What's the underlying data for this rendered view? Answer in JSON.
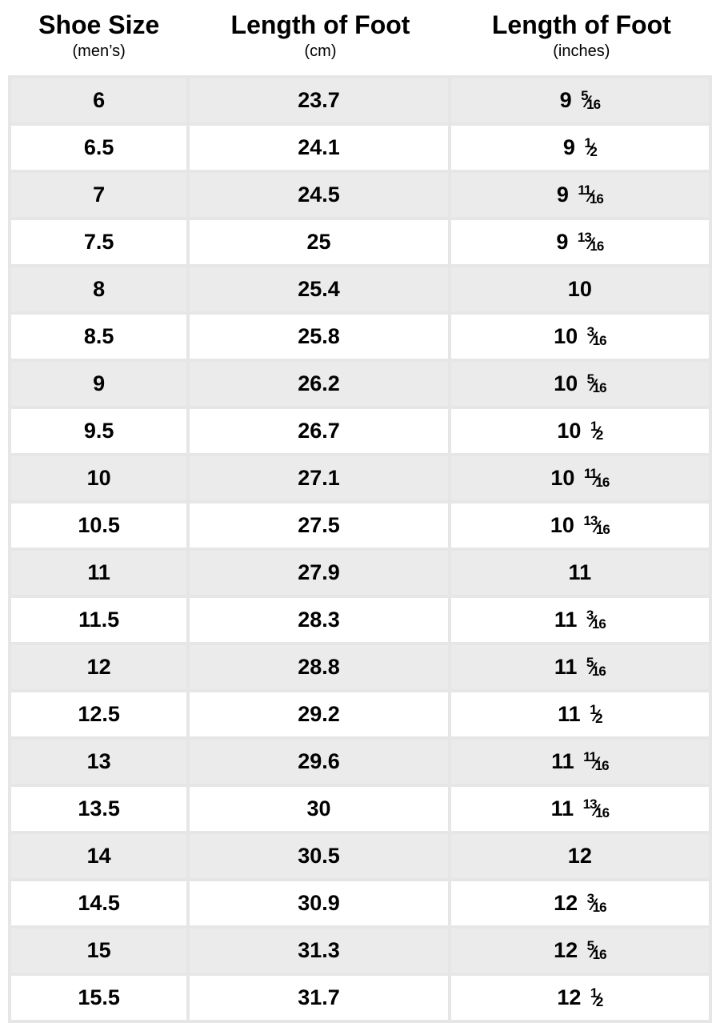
{
  "table": {
    "type": "table",
    "background_color": "#ffffff",
    "row_alt_color": "#ebebeb",
    "border_color": "#e6e6e6",
    "text_color": "#000000",
    "header_main_fontsize": 32,
    "header_sub_fontsize": 20,
    "cell_fontsize": 27,
    "frac_small_fontsize": 17,
    "columns": [
      {
        "main": "Shoe Size",
        "sub": "(men’s)"
      },
      {
        "main": "Length of Foot",
        "sub": "(cm)"
      },
      {
        "main": "Length of Foot",
        "sub": "(inches)"
      }
    ],
    "rows": [
      {
        "size": "6",
        "cm": "23.7",
        "in_whole": "9",
        "in_num": "5",
        "in_den": "16"
      },
      {
        "size": "6.5",
        "cm": "24.1",
        "in_whole": "9",
        "in_num": "1",
        "in_den": "2"
      },
      {
        "size": "7",
        "cm": "24.5",
        "in_whole": "9",
        "in_num": "11",
        "in_den": "16"
      },
      {
        "size": "7.5",
        "cm": "25",
        "in_whole": "9",
        "in_num": "13",
        "in_den": "16"
      },
      {
        "size": "8",
        "cm": "25.4",
        "in_whole": "10",
        "in_num": "",
        "in_den": ""
      },
      {
        "size": "8.5",
        "cm": "25.8",
        "in_whole": "10",
        "in_num": "3",
        "in_den": "16"
      },
      {
        "size": "9",
        "cm": "26.2",
        "in_whole": "10",
        "in_num": "5",
        "in_den": "16"
      },
      {
        "size": "9.5",
        "cm": "26.7",
        "in_whole": "10",
        "in_num": "1",
        "in_den": "2"
      },
      {
        "size": "10",
        "cm": "27.1",
        "in_whole": "10",
        "in_num": "11",
        "in_den": "16"
      },
      {
        "size": "10.5",
        "cm": "27.5",
        "in_whole": "10",
        "in_num": "13",
        "in_den": "16"
      },
      {
        "size": "11",
        "cm": "27.9",
        "in_whole": "11",
        "in_num": "",
        "in_den": ""
      },
      {
        "size": "11.5",
        "cm": "28.3",
        "in_whole": "11",
        "in_num": "3",
        "in_den": "16"
      },
      {
        "size": "12",
        "cm": "28.8",
        "in_whole": "11",
        "in_num": "5",
        "in_den": "16"
      },
      {
        "size": "12.5",
        "cm": "29.2",
        "in_whole": "11",
        "in_num": "1",
        "in_den": "2"
      },
      {
        "size": "13",
        "cm": "29.6",
        "in_whole": "11",
        "in_num": "11",
        "in_den": "16"
      },
      {
        "size": "13.5",
        "cm": "30",
        "in_whole": "11",
        "in_num": "13",
        "in_den": "16"
      },
      {
        "size": "14",
        "cm": "30.5",
        "in_whole": "12",
        "in_num": "",
        "in_den": ""
      },
      {
        "size": "14.5",
        "cm": "30.9",
        "in_whole": "12",
        "in_num": "3",
        "in_den": "16"
      },
      {
        "size": "15",
        "cm": "31.3",
        "in_whole": "12",
        "in_num": "5",
        "in_den": "16"
      },
      {
        "size": "15.5",
        "cm": "31.7",
        "in_whole": "12",
        "in_num": "1",
        "in_den": "2"
      }
    ]
  }
}
